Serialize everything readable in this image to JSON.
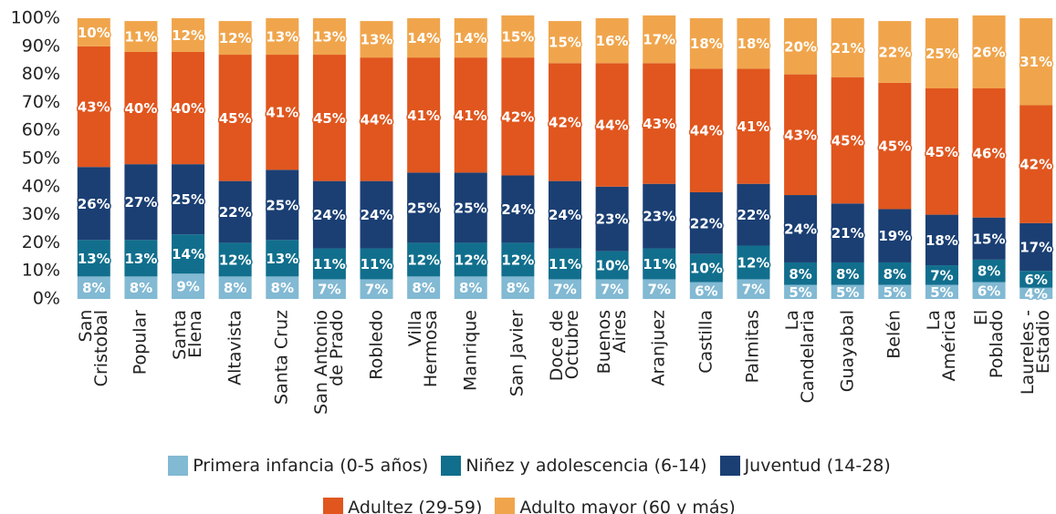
{
  "chart_data": {
    "type": "stacked_bar",
    "categories": [
      "San\nCristobal",
      "Popular",
      "Santa\nElena",
      "Altavista",
      "Santa Cruz",
      "San Antonio\nde Prado",
      "Robledo",
      "Villa\nHermosa",
      "Manrique",
      "San Javier",
      "Doce de\nOctubre",
      "Buenos\nAires",
      "Aranjuez",
      "Castilla",
      "Palmitas",
      "La\nCandelaria",
      "Guayabal",
      "Belén",
      "La\nAmérica",
      "El\nPoblado",
      "Laureles -\nEstadio"
    ],
    "series": [
      {
        "name": "Primera infancia (0-5 años)",
        "color": "#82b9d3",
        "values": [
          8,
          8,
          9,
          8,
          8,
          7,
          7,
          8,
          8,
          8,
          7,
          7,
          7,
          6,
          7,
          5,
          5,
          5,
          5,
          6,
          4
        ],
        "value_labels": [
          "8%",
          "8%",
          "9%",
          "8%",
          "8%",
          "7%",
          "7%",
          "8%",
          "8%",
          "8%",
          "7%",
          "7%",
          "7%",
          "6%",
          "7%",
          "5%",
          "5%",
          "5%",
          "5%",
          "6%",
          "4%"
        ]
      },
      {
        "name": "Niñez y adolescencia (6-14)",
        "color": "#116f8d",
        "values": [
          13,
          13,
          14,
          12,
          13,
          11,
          11,
          12,
          12,
          12,
          11,
          10,
          11,
          10,
          12,
          8,
          8,
          8,
          7,
          8,
          6
        ],
        "value_labels": [
          "13%",
          "13%",
          "14%",
          "12%",
          "13%",
          "11%",
          "11%",
          "12%",
          "12%",
          "12%",
          "11%",
          "10%",
          "11%",
          "10%",
          "12%",
          "8%",
          "8%",
          "8%",
          "7%",
          "8%",
          "6%"
        ]
      },
      {
        "name": "Juventud (14-28)",
        "color": "#1b3f73",
        "values": [
          26,
          27,
          25,
          22,
          25,
          24,
          24,
          25,
          25,
          24,
          24,
          23,
          23,
          22,
          22,
          24,
          21,
          19,
          18,
          15,
          17
        ],
        "value_labels": [
          "26%",
          "27%",
          "25%",
          "22%",
          "25%",
          "24%",
          "24%",
          "25%",
          "25%",
          "24%",
          "24%",
          "23%",
          "23%",
          "22%",
          "22%",
          "24%",
          "21%",
          "19%",
          "18%",
          "15%",
          "17%"
        ]
      },
      {
        "name": "Adultez (29-59)",
        "color": "#e0561e",
        "values": [
          43,
          40,
          40,
          45,
          41,
          45,
          44,
          41,
          41,
          42,
          42,
          44,
          43,
          44,
          41,
          43,
          45,
          45,
          45,
          46,
          42
        ],
        "value_labels": [
          "43%",
          "40%",
          "40%",
          "45%",
          "41%",
          "45%",
          "44%",
          "41%",
          "41%",
          "42%",
          "42%",
          "44%",
          "43%",
          "44%",
          "41%",
          "43%",
          "45%",
          "45%",
          "45%",
          "46%",
          "42%"
        ]
      },
      {
        "name": "Adulto mayor (60 y más)",
        "color": "#f0a54c",
        "values": [
          10,
          11,
          12,
          12,
          13,
          13,
          13,
          14,
          14,
          15,
          15,
          16,
          17,
          18,
          18,
          20,
          21,
          22,
          25,
          26,
          31
        ],
        "value_labels": [
          "10%",
          "11%",
          "12%",
          "12%",
          "13%",
          "13%",
          "13%",
          "14%",
          "14%",
          "15%",
          "15%",
          "16%",
          "17%",
          "18%",
          "18%",
          "20%",
          "21%",
          "22%",
          "25%",
          "26%",
          "31%"
        ]
      }
    ],
    "ylim": [
      0,
      100
    ],
    "yticks": [
      {
        "value": 0,
        "label": "0%"
      },
      {
        "value": 10,
        "label": "10%"
      },
      {
        "value": 20,
        "label": "20%"
      },
      {
        "value": 30,
        "label": "30%"
      },
      {
        "value": 40,
        "label": "40%"
      },
      {
        "value": 50,
        "label": "50%"
      },
      {
        "value": 60,
        "label": "60%"
      },
      {
        "value": 70,
        "label": "70%"
      },
      {
        "value": 80,
        "label": "80%"
      },
      {
        "value": 90,
        "label": "90%"
      },
      {
        "value": 100,
        "label": "100%"
      }
    ],
    "legend": "bottom"
  }
}
